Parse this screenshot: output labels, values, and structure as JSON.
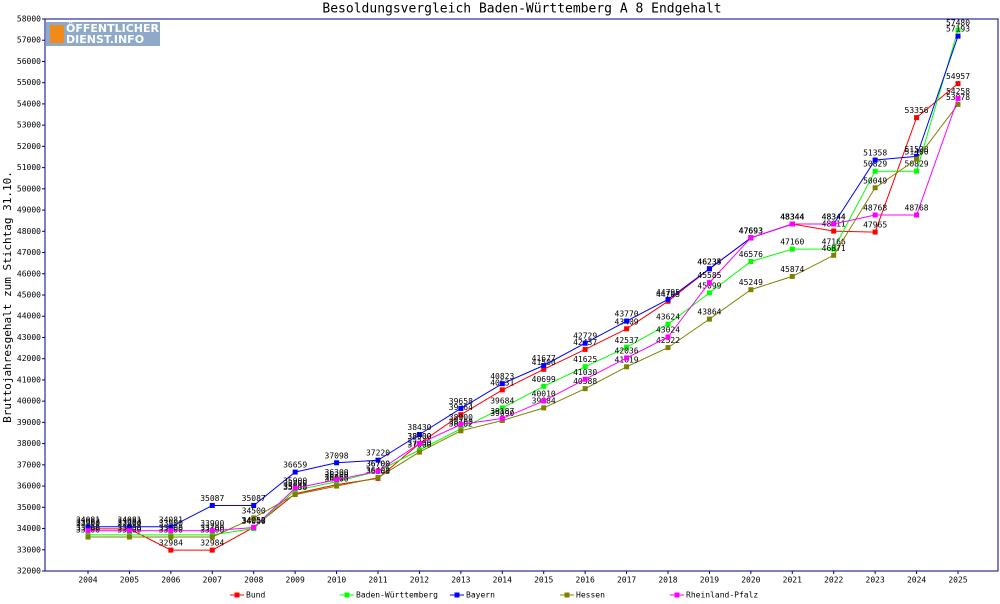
{
  "logo": [
    "ÖFFENTLICHER",
    "DIENST.INFO"
  ],
  "chart_data": {
    "type": "line",
    "title": "Besoldungsvergleich Baden-Württemberg A 8 Endgehalt",
    "y_label": "Bruttojahresgehalt zum Stichtag 31.10.",
    "categories": [
      "2004",
      "2005",
      "2006",
      "2007",
      "2008",
      "2009",
      "2010",
      "2011",
      "2012",
      "2013",
      "2014",
      "2015",
      "2016",
      "2017",
      "2018",
      "2019",
      "2020",
      "2021",
      "2022",
      "2023",
      "2024",
      "2025"
    ],
    "ylim": [
      32000,
      58000
    ],
    "yticks": [
      32000,
      33000,
      34000,
      35000,
      36000,
      37000,
      38000,
      39000,
      40000,
      41000,
      42000,
      43000,
      44000,
      45000,
      46000,
      47000,
      48000,
      49000,
      50000,
      51000,
      52000,
      53000,
      54000,
      55000,
      56000,
      57000,
      58000
    ],
    "grid": false,
    "series": [
      {
        "name": "Bund",
        "color": "#ff0000",
        "values": [
          33983,
          33983,
          32984,
          32984,
          34057,
          35641,
          36069,
          36363,
          38000,
          39364,
          40531,
          41500,
          42437,
          43409,
          44705,
          46234,
          47693,
          48344,
          48011,
          47965,
          53356,
          54957
        ]
      },
      {
        "name": "Baden-Württemberg",
        "color": "#00ff00",
        "values": [
          33700,
          33700,
          33700,
          33700,
          34000,
          35800,
          36200,
          36700,
          37700,
          38700,
          39684,
          40699,
          41625,
          42537,
          43624,
          45099,
          46576,
          47160,
          47166,
          50829,
          50829,
          57480
        ]
      },
      {
        "name": "Bayern",
        "color": "#0000ff",
        "values": [
          34081,
          34081,
          34081,
          35087,
          35087,
          36659,
          37098,
          37220,
          38430,
          39658,
          40823,
          41677,
          42729,
          43770,
          44795,
          46235,
          47693,
          48344,
          48344,
          51358,
          51528,
          57193
        ]
      },
      {
        "name": "Hessen",
        "color": "#808000",
        "values": [
          33600,
          33600,
          33600,
          33600,
          34500,
          35600,
          36000,
          36400,
          37600,
          38602,
          39090,
          39684,
          40588,
          41619,
          42522,
          43864,
          45249,
          45874,
          46871,
          50049,
          51400,
          53978
        ]
      },
      {
        "name": "Rheinland-Pfalz",
        "color": "#ff00ff",
        "values": [
          33900,
          33900,
          33900,
          33900,
          34050,
          35900,
          36300,
          36700,
          38000,
          38900,
          39187,
          40010,
          41030,
          42036,
          43024,
          45585,
          47693,
          48344,
          48344,
          48768,
          48768,
          54258
        ]
      }
    ]
  }
}
